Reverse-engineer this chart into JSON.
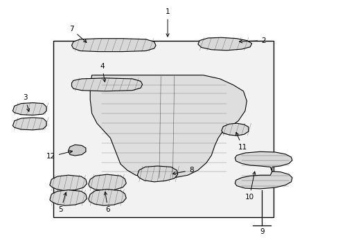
{
  "bg_color": "#ffffff",
  "line_color": "#000000",
  "fig_width": 4.89,
  "fig_height": 3.6,
  "dpi": 100,
  "label_fontsize": 7.5,
  "part_fill": "#d8d8d8",
  "part_fill2": "#e8e8e8"
}
